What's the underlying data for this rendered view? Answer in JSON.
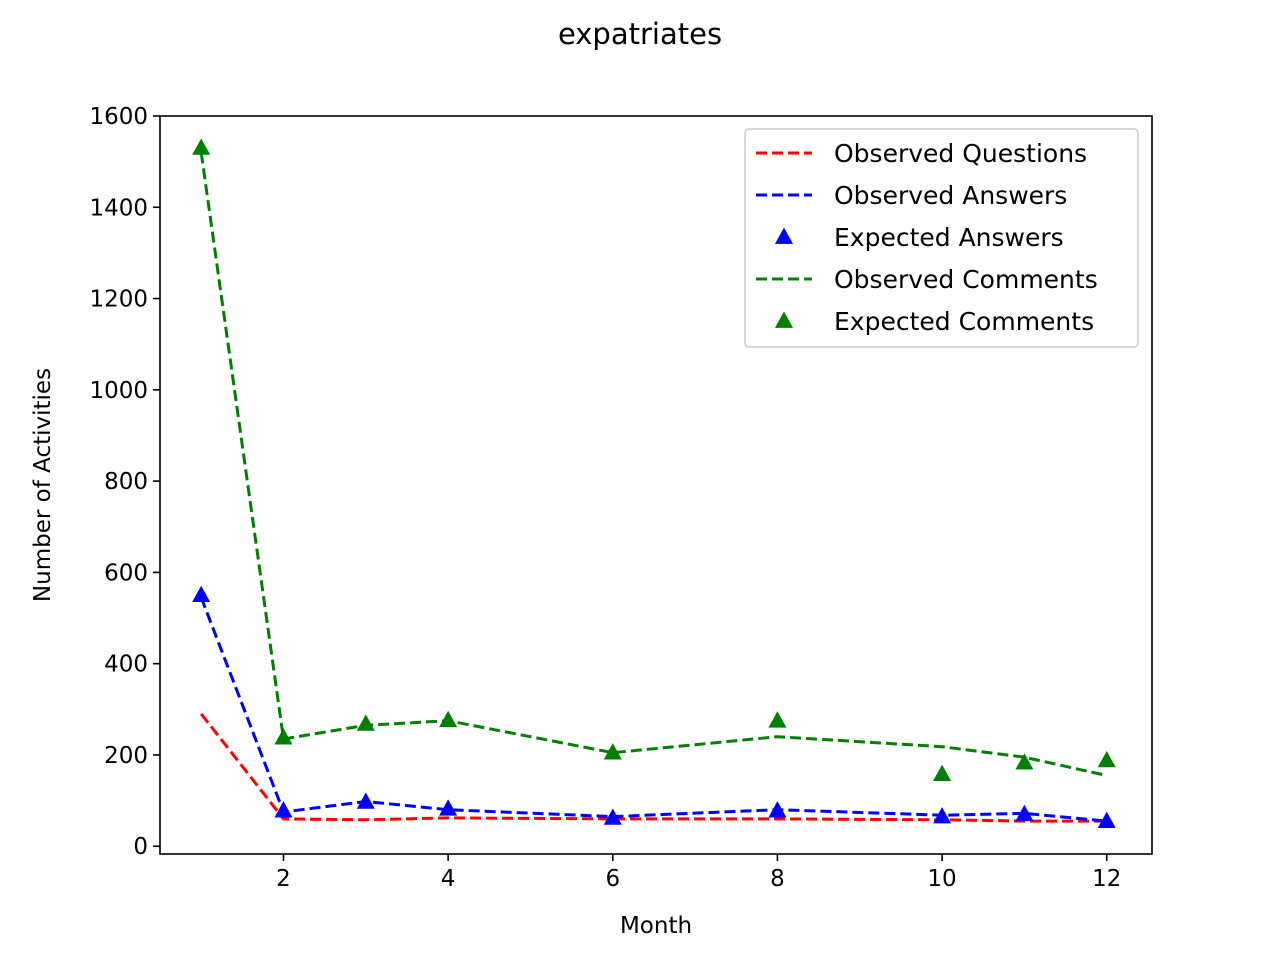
{
  "chart_data": {
    "type": "line",
    "title": "expatriates",
    "xlabel": "Month",
    "ylabel": "Number of Activities",
    "xlim": [
      0.5,
      12.55
    ],
    "ylim": [
      -17,
      1600
    ],
    "x_ticks": [
      2,
      4,
      6,
      8,
      10,
      12
    ],
    "y_ticks": [
      0,
      200,
      400,
      600,
      800,
      1000,
      1200,
      1400,
      1600
    ],
    "grid": false,
    "legend_position": "top-right",
    "x": [
      1,
      2,
      3,
      4,
      6,
      8,
      10,
      11,
      12
    ],
    "series": [
      {
        "name": "Observed Questions",
        "style": "dashed-line",
        "color": "#ff0000",
        "values": [
          290,
          60,
          58,
          62,
          60,
          60,
          58,
          55,
          55
        ]
      },
      {
        "name": "Observed Answers",
        "style": "dashed-line",
        "color": "#0000ff",
        "values": [
          545,
          75,
          98,
          80,
          65,
          80,
          68,
          72,
          55
        ]
      },
      {
        "name": "Expected Answers",
        "style": "triangle-markers",
        "color": "#0000ff",
        "values": [
          550,
          78,
          97,
          82,
          62,
          78,
          65,
          70,
          55
        ]
      },
      {
        "name": "Observed Comments",
        "style": "dashed-line",
        "color": "#008000",
        "values": [
          1520,
          235,
          265,
          275,
          205,
          240,
          218,
          195,
          155
        ]
      },
      {
        "name": "Expected Comments",
        "style": "triangle-markers",
        "color": "#008000",
        "values": [
          1530,
          238,
          268,
          276,
          205,
          275,
          158,
          183,
          188
        ]
      }
    ]
  }
}
